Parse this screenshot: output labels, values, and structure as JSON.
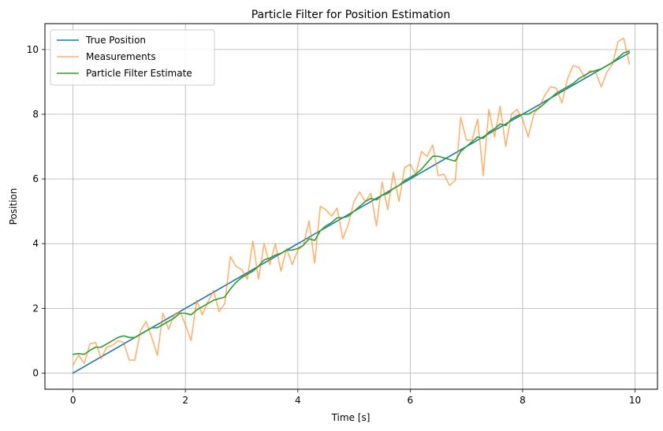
{
  "chart_data": {
    "type": "line",
    "title": "Particle Filter for Position Estimation",
    "xlabel": "Time [s]",
    "ylabel": "Position",
    "xlim": [
      -0.5,
      10.4
    ],
    "ylim": [
      -0.5,
      10.8
    ],
    "xticks": [
      0,
      2,
      4,
      6,
      8,
      10
    ],
    "yticks": [
      0,
      2,
      4,
      6,
      8,
      10
    ],
    "grid": true,
    "legend_position": "top-left",
    "series": [
      {
        "name": "True Position",
        "color": "#1f77b4",
        "x": [
          0,
          9.9
        ],
        "y": [
          0,
          9.9
        ]
      },
      {
        "name": "Measurements",
        "color": "#ff7f0e",
        "x": [
          0,
          0.1,
          0.2,
          0.3,
          0.4,
          0.5,
          0.6,
          0.7,
          0.8,
          0.9,
          1.0,
          1.1,
          1.2,
          1.3,
          1.4,
          1.5,
          1.6,
          1.7,
          1.8,
          1.9,
          2.0,
          2.1,
          2.2,
          2.3,
          2.4,
          2.5,
          2.6,
          2.7,
          2.8,
          2.9,
          3.0,
          3.1,
          3.2,
          3.3,
          3.4,
          3.5,
          3.6,
          3.7,
          3.8,
          3.9,
          4.0,
          4.1,
          4.2,
          4.3,
          4.4,
          4.5,
          4.6,
          4.7,
          4.8,
          4.9,
          5.0,
          5.1,
          5.2,
          5.3,
          5.4,
          5.5,
          5.6,
          5.7,
          5.8,
          5.9,
          6.0,
          6.1,
          6.2,
          6.3,
          6.4,
          6.5,
          6.6,
          6.7,
          6.8,
          6.9,
          7.0,
          7.1,
          7.2,
          7.3,
          7.4,
          7.5,
          7.6,
          7.7,
          7.8,
          7.9,
          8.0,
          8.1,
          8.2,
          8.3,
          8.4,
          8.5,
          8.6,
          8.7,
          8.8,
          8.9,
          9.0,
          9.1,
          9.2,
          9.3,
          9.4,
          9.5,
          9.6,
          9.7,
          9.8,
          9.9
        ],
        "y": [
          0.25,
          0.55,
          0.3,
          0.9,
          0.95,
          0.45,
          0.8,
          0.85,
          1.0,
          0.95,
          0.4,
          0.4,
          1.3,
          1.6,
          1.1,
          0.55,
          1.85,
          1.35,
          1.8,
          1.9,
          1.5,
          1.0,
          2.25,
          1.8,
          2.2,
          2.55,
          1.9,
          2.15,
          3.6,
          3.3,
          3.2,
          2.9,
          4.08,
          2.9,
          4.0,
          3.35,
          4.0,
          3.15,
          3.85,
          3.35,
          3.8,
          3.95,
          4.7,
          3.4,
          5.15,
          5.05,
          4.85,
          5.1,
          4.15,
          4.6,
          5.3,
          5.6,
          5.3,
          5.55,
          4.55,
          5.9,
          5.05,
          6.2,
          5.3,
          6.35,
          6.45,
          6.15,
          6.85,
          6.7,
          7.05,
          6.1,
          6.15,
          5.8,
          5.95,
          7.9,
          7.2,
          7.2,
          7.85,
          6.1,
          8.15,
          7.3,
          8.25,
          7.0,
          8.0,
          8.15,
          7.85,
          7.3,
          8.0,
          8.25,
          8.6,
          8.85,
          8.8,
          8.35,
          9.1,
          9.5,
          9.45,
          9.15,
          9.35,
          9.3,
          8.85,
          9.3,
          9.55,
          10.25,
          10.35,
          9.55
        ]
      },
      {
        "name": "Particle Filter Estimate",
        "color": "#2ca02c",
        "x": [
          0,
          0.1,
          0.2,
          0.3,
          0.4,
          0.5,
          0.6,
          0.7,
          0.8,
          0.9,
          1.0,
          1.1,
          1.2,
          1.3,
          1.4,
          1.5,
          1.6,
          1.7,
          1.8,
          1.9,
          2.0,
          2.1,
          2.2,
          2.3,
          2.4,
          2.5,
          2.6,
          2.7,
          2.8,
          2.9,
          3.0,
          3.1,
          3.2,
          3.3,
          3.4,
          3.5,
          3.6,
          3.7,
          3.8,
          3.9,
          4.0,
          4.1,
          4.2,
          4.3,
          4.4,
          4.5,
          4.6,
          4.7,
          4.8,
          4.9,
          5.0,
          5.1,
          5.2,
          5.3,
          5.4,
          5.5,
          5.6,
          5.7,
          5.8,
          5.9,
          6.0,
          6.1,
          6.2,
          6.3,
          6.4,
          6.5,
          6.6,
          6.7,
          6.8,
          6.9,
          7.0,
          7.1,
          7.2,
          7.3,
          7.4,
          7.5,
          7.6,
          7.7,
          7.8,
          7.9,
          8.0,
          8.1,
          8.2,
          8.3,
          8.4,
          8.5,
          8.6,
          8.7,
          8.8,
          8.9,
          9.0,
          9.1,
          9.2,
          9.3,
          9.4,
          9.5,
          9.6,
          9.7,
          9.8,
          9.9
        ],
        "y": [
          0.58,
          0.6,
          0.58,
          0.7,
          0.8,
          0.8,
          0.9,
          1.0,
          1.1,
          1.15,
          1.1,
          1.1,
          1.2,
          1.3,
          1.4,
          1.4,
          1.5,
          1.6,
          1.7,
          1.85,
          1.85,
          1.8,
          1.95,
          2.05,
          2.15,
          2.25,
          2.3,
          2.35,
          2.6,
          2.8,
          2.95,
          3.05,
          3.15,
          3.3,
          3.5,
          3.55,
          3.65,
          3.7,
          3.8,
          3.8,
          3.85,
          3.95,
          4.15,
          4.1,
          4.4,
          4.55,
          4.65,
          4.8,
          4.8,
          4.85,
          5.0,
          5.15,
          5.3,
          5.4,
          5.35,
          5.5,
          5.55,
          5.7,
          5.8,
          5.95,
          6.05,
          6.15,
          6.3,
          6.5,
          6.7,
          6.7,
          6.65,
          6.6,
          6.55,
          6.85,
          7.0,
          7.15,
          7.3,
          7.25,
          7.45,
          7.55,
          7.7,
          7.65,
          7.85,
          7.95,
          8.0,
          8.0,
          8.1,
          8.2,
          8.35,
          8.5,
          8.65,
          8.75,
          8.85,
          8.95,
          9.1,
          9.2,
          9.3,
          9.35,
          9.4,
          9.5,
          9.6,
          9.75,
          9.9,
          9.95
        ]
      }
    ]
  }
}
